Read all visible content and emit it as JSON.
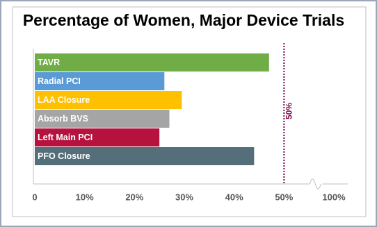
{
  "chart_data": {
    "type": "hbar",
    "title": "Percentage of Women, Major Device Trials",
    "categories": [
      "TAVR",
      "Radial PCI",
      "LAA Closure",
      "Absorb BVS",
      "Left Main PCI",
      "PFO Closure"
    ],
    "values": [
      47,
      26,
      29.5,
      27,
      25,
      44
    ],
    "colors": [
      "#70ad47",
      "#5b9bd5",
      "#ffc000",
      "#a5a5a5",
      "#b5123e",
      "#546e7a"
    ],
    "xlim": [
      0,
      100
    ],
    "xticks": [
      0,
      {
        "value": 10,
        "label": "10%"
      },
      {
        "value": 20,
        "label": "20%"
      },
      {
        "value": 30,
        "label": "30%"
      },
      {
        "value": 40,
        "label": "40%"
      },
      {
        "value": 50,
        "label": "50%"
      },
      {
        "value": 100,
        "label": "100%"
      }
    ],
    "x_break": [
      56,
      96
    ],
    "reference_line": {
      "value": 50,
      "label": "50%",
      "color": "#7b0a4a"
    }
  }
}
